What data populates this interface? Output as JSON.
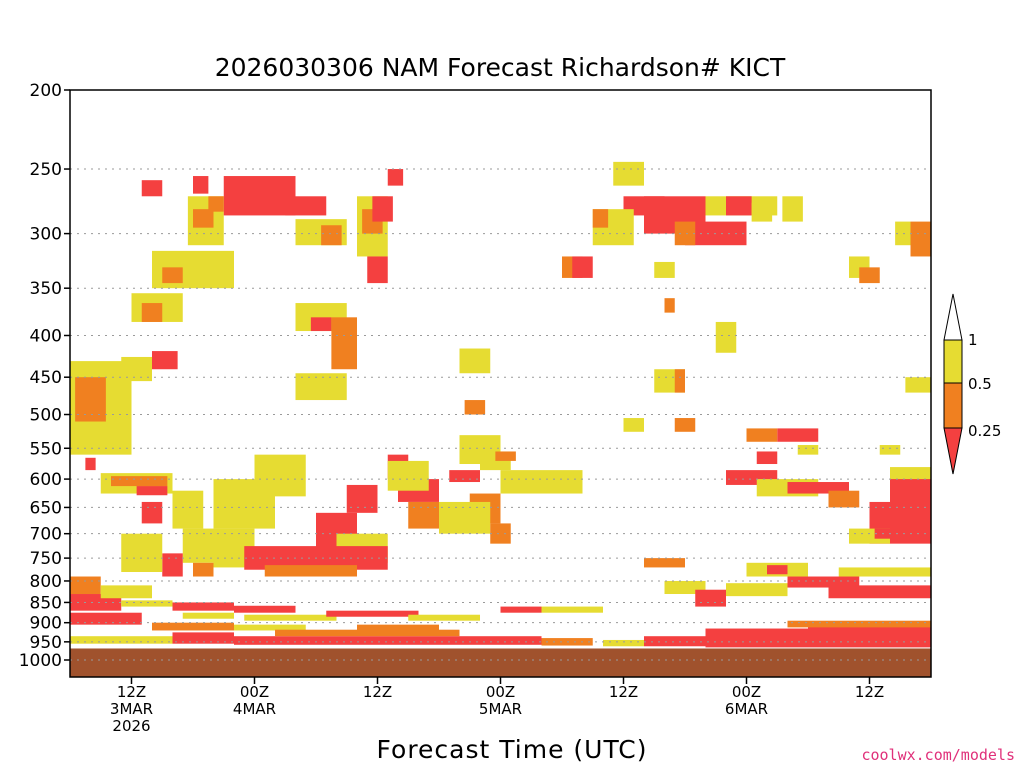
{
  "chart_data": {
    "type": "heatmap",
    "title": "2026030306 NAM Forecast Richardson# KICT",
    "xlabel": "Forecast Time (UTC)",
    "ylabel": "",
    "credit": "coolwx.com/models",
    "y_scale": "log-pressure",
    "y_range_hpa": [
      1000,
      200
    ],
    "x_range_hours_from_init": [
      0,
      84
    ],
    "init_time": "2026030306",
    "grid": "dotted horizontal lines at labeled pressure levels",
    "y_ticks": [
      "200",
      "250",
      "300",
      "350",
      "400",
      "450",
      "500",
      "550",
      "600",
      "650",
      "700",
      "750",
      "800",
      "850",
      "900",
      "950",
      "1000"
    ],
    "x_ticks": [
      {
        "hour": 6,
        "lines": [
          "12Z",
          "3MAR",
          "2026"
        ]
      },
      {
        "hour": 18,
        "lines": [
          "00Z",
          "4MAR"
        ]
      },
      {
        "hour": 30,
        "lines": [
          "12Z"
        ]
      },
      {
        "hour": 42,
        "lines": [
          "00Z",
          "5MAR"
        ]
      },
      {
        "hour": 54,
        "lines": [
          "12Z"
        ]
      },
      {
        "hour": 66,
        "lines": [
          "00Z",
          "6MAR"
        ]
      },
      {
        "hour": 78,
        "lines": [
          "12Z"
        ]
      }
    ],
    "legend": {
      "placement": "right",
      "bins": [
        {
          "range": "< 0.25",
          "color": "#f44040"
        },
        {
          "range": "0.25 - 0.5",
          "color": "#f08020"
        },
        {
          "range": "0.5 - 1",
          "color": "#e6dc32"
        },
        {
          "range": "> 1",
          "color": "#ffffff"
        }
      ],
      "labels": [
        "1",
        "0.5",
        "0.25"
      ]
    },
    "ground_color": "#a0522d",
    "colors": {
      "red": "#f44040",
      "orange": "#f08020",
      "yellow": "#e6dc32"
    },
    "cells": [
      {
        "h0": 0,
        "h1": 6,
        "p0": 430,
        "p1": 560,
        "cat": "yellow"
      },
      {
        "h0": 0.5,
        "h1": 3.5,
        "p0": 450,
        "p1": 510,
        "cat": "orange"
      },
      {
        "h0": 1.5,
        "h1": 2.5,
        "p0": 565,
        "p1": 585,
        "cat": "red"
      },
      {
        "h0": 3,
        "h1": 10,
        "p0": 590,
        "p1": 625,
        "cat": "yellow"
      },
      {
        "h0": 4,
        "h1": 9.5,
        "p0": 595,
        "p1": 612,
        "cat": "orange"
      },
      {
        "h0": 6.5,
        "h1": 9.5,
        "p0": 612,
        "p1": 628,
        "cat": "red"
      },
      {
        "h0": 5,
        "h1": 8,
        "p0": 425,
        "p1": 455,
        "cat": "yellow"
      },
      {
        "h0": 8,
        "h1": 10.5,
        "p0": 418,
        "p1": 440,
        "cat": "red"
      },
      {
        "h0": 6,
        "h1": 11,
        "p0": 355,
        "p1": 385,
        "cat": "yellow"
      },
      {
        "h0": 7,
        "h1": 9,
        "p0": 365,
        "p1": 385,
        "cat": "orange"
      },
      {
        "h0": 8,
        "h1": 16,
        "p0": 315,
        "p1": 350,
        "cat": "yellow"
      },
      {
        "h0": 9,
        "h1": 11,
        "p0": 330,
        "p1": 345,
        "cat": "orange"
      },
      {
        "h0": 11.5,
        "h1": 15,
        "p0": 270,
        "p1": 310,
        "cat": "yellow"
      },
      {
        "h0": 12,
        "h1": 14,
        "p0": 280,
        "p1": 295,
        "cat": "orange"
      },
      {
        "h0": 7,
        "h1": 9,
        "p0": 258,
        "p1": 270,
        "cat": "red"
      },
      {
        "h0": 12,
        "h1": 13.5,
        "p0": 255,
        "p1": 268,
        "cat": "red"
      },
      {
        "h0": 15,
        "h1": 22,
        "p0": 255,
        "p1": 285,
        "cat": "red"
      },
      {
        "h0": 13.5,
        "h1": 15,
        "p0": 270,
        "p1": 282,
        "cat": "orange"
      },
      {
        "h0": 21,
        "h1": 25,
        "p0": 270,
        "p1": 285,
        "cat": "red"
      },
      {
        "h0": 22,
        "h1": 27,
        "p0": 288,
        "p1": 310,
        "cat": "yellow"
      },
      {
        "h0": 24.5,
        "h1": 26.5,
        "p0": 293,
        "p1": 310,
        "cat": "orange"
      },
      {
        "h0": 22,
        "h1": 27,
        "p0": 365,
        "p1": 395,
        "cat": "yellow"
      },
      {
        "h0": 23.5,
        "h1": 25.5,
        "p0": 380,
        "p1": 395,
        "cat": "red"
      },
      {
        "h0": 25.5,
        "h1": 28,
        "p0": 380,
        "p1": 440,
        "cat": "orange"
      },
      {
        "h0": 22,
        "h1": 27,
        "p0": 445,
        "p1": 480,
        "cat": "yellow"
      },
      {
        "h0": 28,
        "h1": 31,
        "p0": 270,
        "p1": 320,
        "cat": "yellow"
      },
      {
        "h0": 28.5,
        "h1": 30.5,
        "p0": 280,
        "p1": 300,
        "cat": "orange"
      },
      {
        "h0": 29.5,
        "h1": 31.5,
        "p0": 270,
        "p1": 290,
        "cat": "red"
      },
      {
        "h0": 29,
        "h1": 31,
        "p0": 320,
        "p1": 345,
        "cat": "red"
      },
      {
        "h0": 31,
        "h1": 32.5,
        "p0": 250,
        "p1": 262,
        "cat": "red"
      },
      {
        "h0": 38,
        "h1": 41,
        "p0": 415,
        "p1": 445,
        "cat": "yellow"
      },
      {
        "h0": 38.5,
        "h1": 40.5,
        "p0": 480,
        "p1": 500,
        "cat": "orange"
      },
      {
        "h0": 38,
        "h1": 42,
        "p0": 530,
        "p1": 575,
        "cat": "yellow"
      },
      {
        "h0": 37,
        "h1": 40,
        "p0": 585,
        "p1": 605,
        "cat": "red"
      },
      {
        "h0": 40,
        "h1": 43,
        "p0": 555,
        "p1": 585,
        "cat": "yellow"
      },
      {
        "h0": 41.5,
        "h1": 43.5,
        "p0": 555,
        "p1": 570,
        "cat": "orange"
      },
      {
        "h0": 42,
        "h1": 50,
        "p0": 585,
        "p1": 625,
        "cat": "yellow"
      },
      {
        "h0": 39,
        "h1": 42,
        "p0": 625,
        "p1": 680,
        "cat": "orange"
      },
      {
        "h0": 36,
        "h1": 41,
        "p0": 640,
        "p1": 700,
        "cat": "yellow"
      },
      {
        "h0": 41,
        "h1": 43,
        "p0": 680,
        "p1": 720,
        "cat": "orange"
      },
      {
        "h0": 32,
        "h1": 36,
        "p0": 600,
        "p1": 640,
        "cat": "red"
      },
      {
        "h0": 33,
        "h1": 36,
        "p0": 640,
        "p1": 690,
        "cat": "orange"
      },
      {
        "h0": 31,
        "h1": 33,
        "p0": 560,
        "p1": 600,
        "cat": "red"
      },
      {
        "h0": 31,
        "h1": 35,
        "p0": 570,
        "p1": 620,
        "cat": "yellow"
      },
      {
        "h0": 27,
        "h1": 30,
        "p0": 610,
        "p1": 660,
        "cat": "red"
      },
      {
        "h0": 24,
        "h1": 28,
        "p0": 660,
        "p1": 750,
        "cat": "red"
      },
      {
        "h0": 26,
        "h1": 31,
        "p0": 700,
        "p1": 760,
        "cat": "yellow"
      },
      {
        "h0": 14,
        "h1": 20,
        "p0": 600,
        "p1": 690,
        "cat": "yellow"
      },
      {
        "h0": 18,
        "h1": 23,
        "p0": 560,
        "p1": 630,
        "cat": "yellow"
      },
      {
        "h0": 14,
        "h1": 18,
        "p0": 690,
        "p1": 770,
        "cat": "yellow"
      },
      {
        "h0": 17,
        "h1": 31,
        "p0": 725,
        "p1": 775,
        "cat": "red"
      },
      {
        "h0": 19,
        "h1": 28,
        "p0": 765,
        "p1": 790,
        "cat": "orange"
      },
      {
        "h0": 11,
        "h1": 14,
        "p0": 690,
        "p1": 760,
        "cat": "yellow"
      },
      {
        "h0": 12,
        "h1": 14,
        "p0": 760,
        "p1": 790,
        "cat": "orange"
      },
      {
        "h0": 10,
        "h1": 13,
        "p0": 620,
        "p1": 690,
        "cat": "yellow"
      },
      {
        "h0": 7,
        "h1": 9,
        "p0": 640,
        "p1": 680,
        "cat": "red"
      },
      {
        "h0": 9,
        "h1": 11,
        "p0": 740,
        "p1": 790,
        "cat": "red"
      },
      {
        "h0": 5,
        "h1": 9,
        "p0": 700,
        "p1": 780,
        "cat": "yellow"
      },
      {
        "h0": 0,
        "h1": 3,
        "p0": 790,
        "p1": 830,
        "cat": "orange"
      },
      {
        "h0": 0,
        "h1": 5,
        "p0": 830,
        "p1": 870,
        "cat": "red"
      },
      {
        "h0": 3,
        "h1": 8,
        "p0": 810,
        "p1": 840,
        "cat": "yellow"
      },
      {
        "h0": 0,
        "h1": 7,
        "p0": 875,
        "p1": 905,
        "cat": "red"
      },
      {
        "h0": 5,
        "h1": 10,
        "p0": 845,
        "p1": 860,
        "cat": "yellow"
      },
      {
        "h0": 10,
        "h1": 16,
        "p0": 850,
        "p1": 870,
        "cat": "red"
      },
      {
        "h0": 16,
        "h1": 22,
        "p0": 858,
        "p1": 875,
        "cat": "red"
      },
      {
        "h0": 11,
        "h1": 16,
        "p0": 875,
        "p1": 890,
        "cat": "yellow"
      },
      {
        "h0": 17,
        "h1": 26,
        "p0": 880,
        "p1": 895,
        "cat": "yellow"
      },
      {
        "h0": 8,
        "h1": 16,
        "p0": 900,
        "p1": 920,
        "cat": "orange"
      },
      {
        "h0": 16,
        "h1": 23,
        "p0": 905,
        "p1": 920,
        "cat": "yellow"
      },
      {
        "h0": 25,
        "h1": 34,
        "p0": 870,
        "p1": 885,
        "cat": "red"
      },
      {
        "h0": 33,
        "h1": 40,
        "p0": 880,
        "p1": 895,
        "cat": "yellow"
      },
      {
        "h0": 28,
        "h1": 36,
        "p0": 905,
        "p1": 920,
        "cat": "orange"
      },
      {
        "h0": 0,
        "h1": 10,
        "p0": 935,
        "p1": 955,
        "cat": "yellow"
      },
      {
        "h0": 10,
        "h1": 16,
        "p0": 925,
        "p1": 955,
        "cat": "red"
      },
      {
        "h0": 16,
        "h1": 46,
        "p0": 935,
        "p1": 958,
        "cat": "red"
      },
      {
        "h0": 20,
        "h1": 38,
        "p0": 918,
        "p1": 935,
        "cat": "orange"
      },
      {
        "h0": 46,
        "h1": 51,
        "p0": 940,
        "p1": 960,
        "cat": "orange"
      },
      {
        "h0": 42,
        "h1": 46,
        "p0": 860,
        "p1": 875,
        "cat": "red"
      },
      {
        "h0": 46,
        "h1": 52,
        "p0": 860,
        "p1": 875,
        "cat": "yellow"
      },
      {
        "h0": 52,
        "h1": 56,
        "p0": 945,
        "p1": 962,
        "cat": "yellow"
      },
      {
        "h0": 56,
        "h1": 62,
        "p0": 935,
        "p1": 962,
        "cat": "red"
      },
      {
        "h0": 62,
        "h1": 72,
        "p0": 915,
        "p1": 965,
        "cat": "red"
      },
      {
        "h0": 72,
        "h1": 84,
        "p0": 900,
        "p1": 965,
        "cat": "red"
      },
      {
        "h0": 70,
        "h1": 84,
        "p0": 895,
        "p1": 912,
        "cat": "orange"
      },
      {
        "h0": 58,
        "h1": 62,
        "p0": 800,
        "p1": 830,
        "cat": "yellow"
      },
      {
        "h0": 61,
        "h1": 64,
        "p0": 820,
        "p1": 860,
        "cat": "red"
      },
      {
        "h0": 64,
        "h1": 70,
        "p0": 805,
        "p1": 835,
        "cat": "yellow"
      },
      {
        "h0": 70,
        "h1": 77,
        "p0": 790,
        "p1": 815,
        "cat": "red"
      },
      {
        "h0": 74,
        "h1": 84,
        "p0": 810,
        "p1": 840,
        "cat": "red"
      },
      {
        "h0": 75,
        "h1": 84,
        "p0": 770,
        "p1": 790,
        "cat": "yellow"
      },
      {
        "h0": 56,
        "h1": 60,
        "p0": 750,
        "p1": 770,
        "cat": "orange"
      },
      {
        "h0": 66,
        "h1": 72,
        "p0": 760,
        "p1": 790,
        "cat": "yellow"
      },
      {
        "h0": 68,
        "h1": 70,
        "p0": 765,
        "p1": 785,
        "cat": "red"
      },
      {
        "h0": 78,
        "h1": 84,
        "p0": 640,
        "p1": 720,
        "cat": "red"
      },
      {
        "h0": 80,
        "h1": 84,
        "p0": 590,
        "p1": 650,
        "cat": "red"
      },
      {
        "h0": 82,
        "h1": 84,
        "p0": 600,
        "p1": 610,
        "cat": "red"
      },
      {
        "h0": 76,
        "h1": 80,
        "p0": 690,
        "p1": 720,
        "cat": "yellow"
      },
      {
        "h0": 78.5,
        "h1": 80.5,
        "p0": 690,
        "p1": 710,
        "cat": "red"
      },
      {
        "h0": 64,
        "h1": 69,
        "p0": 585,
        "p1": 610,
        "cat": "red"
      },
      {
        "h0": 67,
        "h1": 73,
        "p0": 600,
        "p1": 630,
        "cat": "yellow"
      },
      {
        "h0": 70,
        "h1": 76,
        "p0": 605,
        "p1": 625,
        "cat": "red"
      },
      {
        "h0": 74,
        "h1": 77,
        "p0": 620,
        "p1": 650,
        "cat": "orange"
      },
      {
        "h0": 69,
        "h1": 73,
        "p0": 520,
        "p1": 540,
        "cat": "red"
      },
      {
        "h0": 66,
        "h1": 69,
        "p0": 520,
        "p1": 540,
        "cat": "orange"
      },
      {
        "h0": 67,
        "h1": 69,
        "p0": 555,
        "p1": 575,
        "cat": "red"
      },
      {
        "h0": 71,
        "h1": 73,
        "p0": 545,
        "p1": 560,
        "cat": "yellow"
      },
      {
        "h0": 80,
        "h1": 84,
        "p0": 580,
        "p1": 600,
        "cat": "yellow"
      },
      {
        "h0": 79,
        "h1": 81,
        "p0": 545,
        "p1": 560,
        "cat": "yellow"
      },
      {
        "h0": 54,
        "h1": 58,
        "p0": 270,
        "p1": 285,
        "cat": "red"
      },
      {
        "h0": 53,
        "h1": 56,
        "p0": 245,
        "p1": 262,
        "cat": "yellow"
      },
      {
        "h0": 56,
        "h1": 62,
        "p0": 270,
        "p1": 300,
        "cat": "red"
      },
      {
        "h0": 60,
        "h1": 66,
        "p0": 290,
        "p1": 310,
        "cat": "red"
      },
      {
        "h0": 59,
        "h1": 61,
        "p0": 290,
        "p1": 310,
        "cat": "orange"
      },
      {
        "h0": 51,
        "h1": 55,
        "p0": 280,
        "p1": 310,
        "cat": "yellow"
      },
      {
        "h0": 51,
        "h1": 52.5,
        "p0": 280,
        "p1": 295,
        "cat": "orange"
      },
      {
        "h0": 62,
        "h1": 69,
        "p0": 270,
        "p1": 285,
        "cat": "yellow"
      },
      {
        "h0": 64,
        "h1": 66.5,
        "p0": 270,
        "p1": 285,
        "cat": "red"
      },
      {
        "h0": 66.5,
        "h1": 68.5,
        "p0": 275,
        "p1": 290,
        "cat": "yellow"
      },
      {
        "h0": 69.5,
        "h1": 71.5,
        "p0": 270,
        "p1": 290,
        "cat": "yellow"
      },
      {
        "h0": 48,
        "h1": 50,
        "p0": 320,
        "p1": 340,
        "cat": "orange"
      },
      {
        "h0": 49,
        "h1": 51,
        "p0": 320,
        "p1": 340,
        "cat": "red"
      },
      {
        "h0": 57,
        "h1": 59,
        "p0": 325,
        "p1": 340,
        "cat": "yellow"
      },
      {
        "h0": 58,
        "h1": 59,
        "p0": 360,
        "p1": 375,
        "cat": "orange"
      },
      {
        "h0": 63,
        "h1": 65,
        "p0": 385,
        "p1": 420,
        "cat": "yellow"
      },
      {
        "h0": 57,
        "h1": 60,
        "p0": 440,
        "p1": 470,
        "cat": "yellow"
      },
      {
        "h0": 59,
        "h1": 60,
        "p0": 440,
        "p1": 470,
        "cat": "orange"
      },
      {
        "h0": 54,
        "h1": 56,
        "p0": 505,
        "p1": 525,
        "cat": "yellow"
      },
      {
        "h0": 59,
        "h1": 61,
        "p0": 505,
        "p1": 525,
        "cat": "orange"
      },
      {
        "h0": 76,
        "h1": 78,
        "p0": 320,
        "p1": 340,
        "cat": "yellow"
      },
      {
        "h0": 77,
        "h1": 79,
        "p0": 330,
        "p1": 345,
        "cat": "orange"
      },
      {
        "h0": 82,
        "h1": 84,
        "p0": 290,
        "p1": 320,
        "cat": "orange"
      },
      {
        "h0": 80.5,
        "h1": 82,
        "p0": 290,
        "p1": 310,
        "cat": "yellow"
      },
      {
        "h0": 81.5,
        "h1": 84,
        "p0": 450,
        "p1": 470,
        "cat": "yellow"
      }
    ]
  }
}
